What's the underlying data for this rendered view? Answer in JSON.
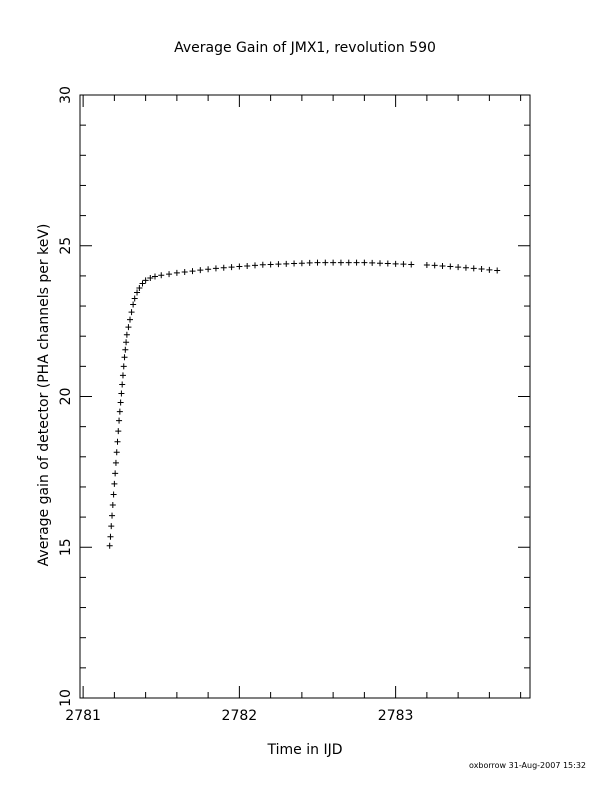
{
  "chart_data": {
    "type": "scatter",
    "title": "Average Gain of JMX1, revolution 590",
    "xlabel": "Time in IJD",
    "ylabel": "Average gain of detector (PHA channels per keV)",
    "xlim": [
      2780.98,
      2783.86
    ],
    "ylim": [
      10,
      30
    ],
    "x_ticks": [
      "2781",
      "2782",
      "2783"
    ],
    "y_ticks": [
      "10",
      "15",
      "20",
      "25",
      "30"
    ],
    "marker": "plus",
    "grid": false,
    "series": [
      {
        "values": [
          [
            2781.17,
            15.05
          ],
          [
            2781.175,
            15.35
          ],
          [
            2781.18,
            15.7
          ],
          [
            2781.185,
            16.05
          ],
          [
            2781.19,
            16.4
          ],
          [
            2781.195,
            16.75
          ],
          [
            2781.2,
            17.1
          ],
          [
            2781.205,
            17.45
          ],
          [
            2781.21,
            17.8
          ],
          [
            2781.215,
            18.15
          ],
          [
            2781.22,
            18.5
          ],
          [
            2781.225,
            18.85
          ],
          [
            2781.23,
            19.2
          ],
          [
            2781.235,
            19.5
          ],
          [
            2781.24,
            19.8
          ],
          [
            2781.245,
            20.1
          ],
          [
            2781.25,
            20.4
          ],
          [
            2781.255,
            20.7
          ],
          [
            2781.26,
            21.0
          ],
          [
            2781.265,
            21.3
          ],
          [
            2781.27,
            21.55
          ],
          [
            2781.275,
            21.8
          ],
          [
            2781.28,
            22.05
          ],
          [
            2781.29,
            22.3
          ],
          [
            2781.3,
            22.55
          ],
          [
            2781.31,
            22.8
          ],
          [
            2781.32,
            23.05
          ],
          [
            2781.33,
            23.25
          ],
          [
            2781.345,
            23.45
          ],
          [
            2781.36,
            23.6
          ],
          [
            2781.38,
            23.75
          ],
          [
            2781.4,
            23.85
          ],
          [
            2781.43,
            23.93
          ],
          [
            2781.46,
            23.98
          ],
          [
            2781.5,
            24.02
          ],
          [
            2781.55,
            24.06
          ],
          [
            2781.6,
            24.1
          ],
          [
            2781.65,
            24.13
          ],
          [
            2781.7,
            24.16
          ],
          [
            2781.75,
            24.19
          ],
          [
            2781.8,
            24.22
          ],
          [
            2781.85,
            24.25
          ],
          [
            2781.9,
            24.27
          ],
          [
            2781.95,
            24.29
          ],
          [
            2782.0,
            24.31
          ],
          [
            2782.05,
            24.33
          ],
          [
            2782.1,
            24.35
          ],
          [
            2782.15,
            24.37
          ],
          [
            2782.2,
            24.38
          ],
          [
            2782.25,
            24.39
          ],
          [
            2782.3,
            24.4
          ],
          [
            2782.35,
            24.41
          ],
          [
            2782.4,
            24.42
          ],
          [
            2782.45,
            24.43
          ],
          [
            2782.5,
            24.44
          ],
          [
            2782.55,
            24.44
          ],
          [
            2782.6,
            24.44
          ],
          [
            2782.65,
            24.44
          ],
          [
            2782.7,
            24.44
          ],
          [
            2782.75,
            24.44
          ],
          [
            2782.8,
            24.44
          ],
          [
            2782.85,
            24.43
          ],
          [
            2782.9,
            24.42
          ],
          [
            2782.95,
            24.41
          ],
          [
            2783.0,
            24.4
          ],
          [
            2783.05,
            24.39
          ],
          [
            2783.1,
            24.38
          ],
          [
            2783.2,
            24.36
          ],
          [
            2783.25,
            24.35
          ],
          [
            2783.3,
            24.33
          ],
          [
            2783.35,
            24.31
          ],
          [
            2783.4,
            24.29
          ],
          [
            2783.45,
            24.27
          ],
          [
            2783.5,
            24.25
          ],
          [
            2783.55,
            24.23
          ],
          [
            2783.6,
            24.2
          ],
          [
            2783.65,
            24.18
          ]
        ]
      }
    ]
  },
  "footer": {
    "stamp": "oxborrow 31-Aug-2007 15:32"
  }
}
